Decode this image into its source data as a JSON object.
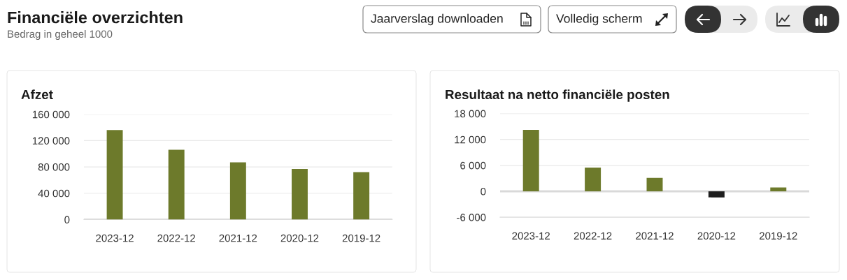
{
  "chart_data": [
    {
      "type": "other",
      "title": "Financiële overzichten",
      "subtitle": "Bedrag in geheel 1000",
      "annotations": [
        "Jaarverslag downloaden",
        "Volledig scherm"
      ]
    },
    {
      "type": "bar",
      "title": "Afzet",
      "categories": [
        "2023-12",
        "2022-12",
        "2021-12",
        "2020-12",
        "2019-12"
      ],
      "values": [
        136000,
        106000,
        87000,
        77000,
        72000
      ],
      "color": "#6d7a2b",
      "ylim": [
        0,
        160000
      ],
      "yticks": [
        0,
        {
          "value": 40000,
          "label": "40 000"
        },
        {
          "value": 80000,
          "label": "80 000"
        },
        {
          "value": 120000,
          "label": "120 000"
        },
        {
          "value": 160000,
          "label": "160 000"
        }
      ],
      "grid": "y"
    },
    {
      "type": "bar",
      "title": "Resultaat na netto financiële posten",
      "categories": [
        "2023-12",
        "2022-12",
        "2021-12",
        "2020-12",
        "2019-12"
      ],
      "values": [
        14200,
        5500,
        3100,
        -1400,
        900
      ],
      "colors": [
        "#6d7a2b",
        "#6d7a2b",
        "#6d7a2b",
        "#1e1e1e",
        "#6d7a2b"
      ],
      "ylim": [
        -6000,
        18000
      ],
      "yticks": [
        {
          "value": -6000,
          "label": "-6 000"
        },
        0,
        {
          "value": 6000,
          "label": "6 000"
        },
        {
          "value": 12000,
          "label": "12 000"
        },
        {
          "value": 18000,
          "label": "18 000"
        }
      ],
      "grid": "y"
    }
  ]
}
